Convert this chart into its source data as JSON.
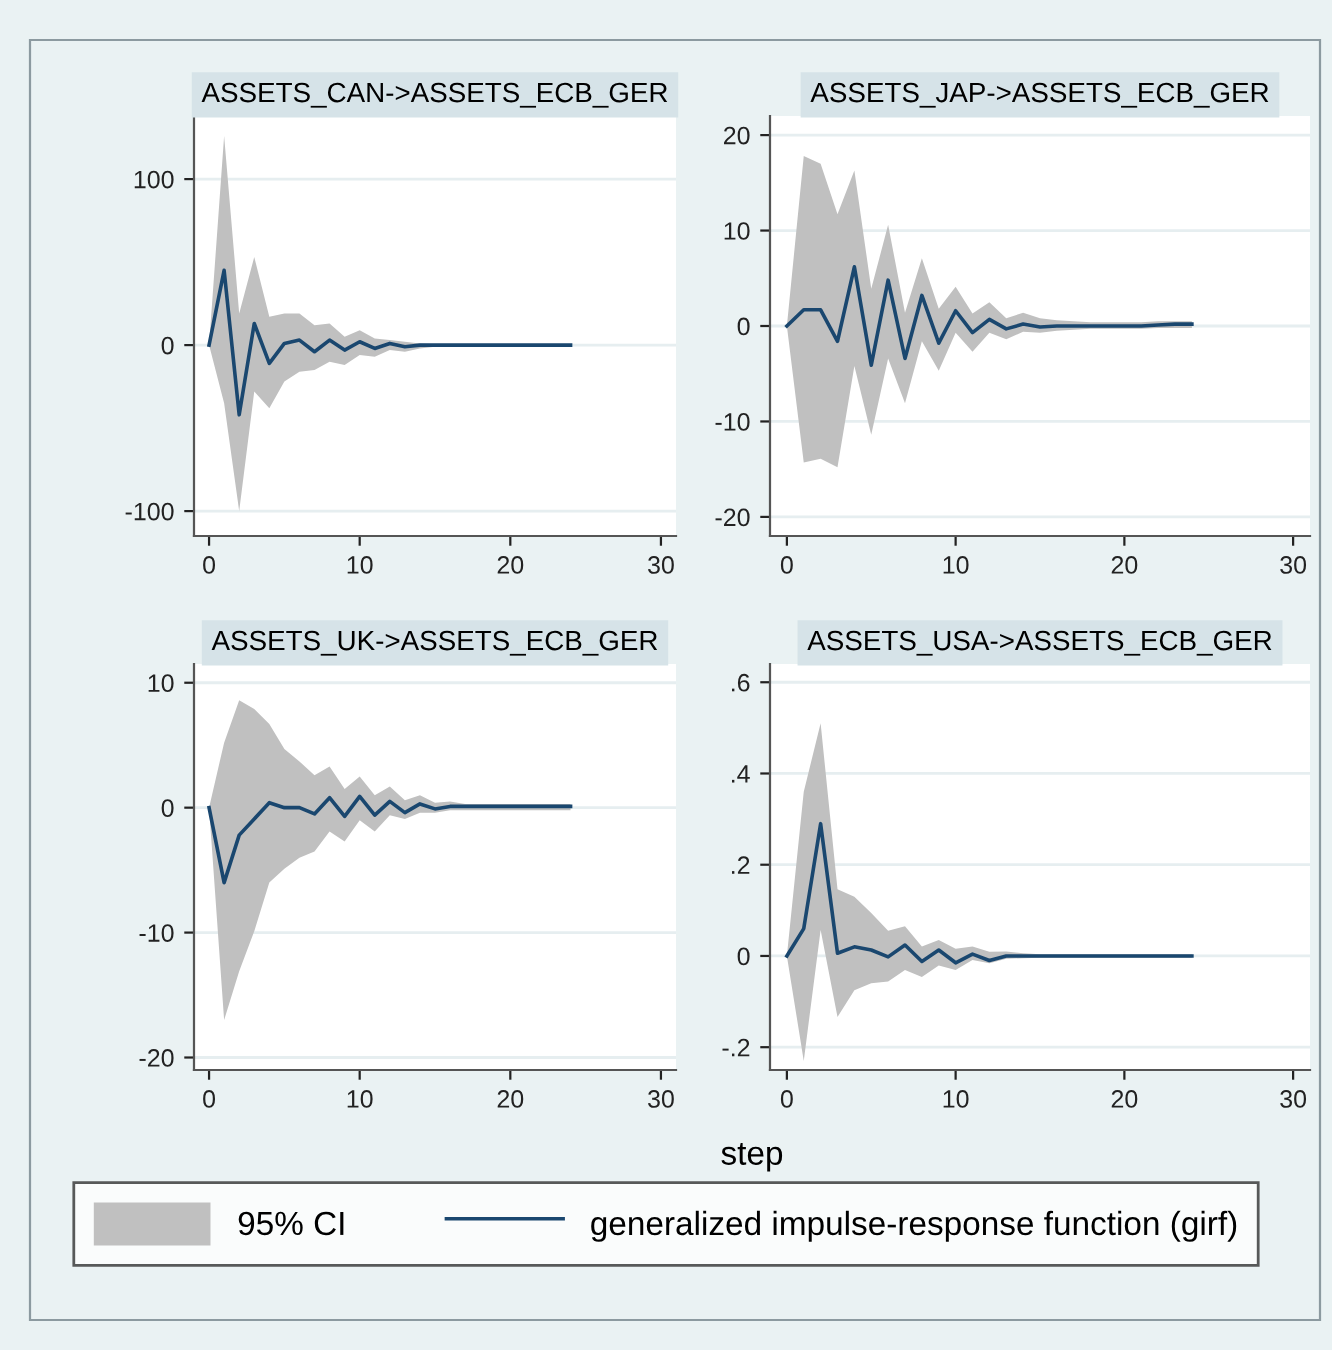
{
  "chart_data": [
    {
      "type": "line",
      "title": "ASSETS_CAN->ASSETS_ECB_GER",
      "x": [
        0,
        1,
        2,
        3,
        4,
        5,
        6,
        7,
        8,
        9,
        10,
        11,
        12,
        13,
        14,
        15,
        16,
        17,
        18,
        19,
        20,
        21,
        22,
        23,
        24
      ],
      "xlim": [
        -1,
        31
      ],
      "xticks": [
        0,
        10,
        20,
        30
      ],
      "ylim": [
        -115,
        138
      ],
      "yticks": [
        -100,
        0,
        100
      ],
      "grid": "y",
      "series": [
        {
          "color": "#1a476f",
          "values": [
            0,
            45,
            -42,
            13,
            -11,
            1,
            3,
            -4,
            3,
            -3,
            2,
            -2,
            1,
            -1,
            0,
            0,
            0,
            0,
            0,
            0,
            0,
            0,
            0,
            0,
            0
          ],
          "upper": [
            0,
            126,
            19,
            53,
            17,
            19,
            19,
            12,
            13,
            5,
            9,
            4,
            3,
            2,
            1,
            0.5,
            0.3,
            0.3,
            0.3,
            0.3,
            0.3,
            0.3,
            0.3,
            0.3,
            0.3
          ],
          "lower": [
            0,
            -35,
            -100,
            -28,
            -38,
            -22,
            -16,
            -15,
            -10,
            -12,
            -6,
            -7,
            -3,
            -4,
            -2,
            -1,
            -0.3,
            -0.3,
            -0.3,
            -0.3,
            -0.3,
            -0.3,
            -0.3,
            -0.3,
            -0.3
          ]
        }
      ]
    },
    {
      "type": "line",
      "title": "ASSETS_JAP->ASSETS_ECB_GER",
      "x": [
        0,
        1,
        2,
        3,
        4,
        5,
        6,
        7,
        8,
        9,
        10,
        11,
        12,
        13,
        14,
        15,
        16,
        17,
        18,
        19,
        20,
        21,
        22,
        23,
        24
      ],
      "xlim": [
        -1,
        31
      ],
      "xticks": [
        0,
        10,
        20,
        30
      ],
      "ylim": [
        -22,
        22
      ],
      "yticks": [
        -20,
        -10,
        0,
        10,
        20
      ],
      "grid": "y",
      "series": [
        {
          "color": "#1a476f",
          "values": [
            0,
            1.7,
            1.7,
            -1.6,
            6.2,
            -4.1,
            4.8,
            -3.4,
            3.2,
            -1.8,
            1.6,
            -0.7,
            0.7,
            -0.3,
            0.2,
            -0.1,
            0,
            0,
            0,
            0,
            0,
            0,
            0.1,
            0.2,
            0.2
          ],
          "upper": [
            0,
            17.8,
            17,
            11.7,
            16.3,
            3.9,
            10.6,
            1.4,
            7.1,
            1.8,
            4.1,
            1.3,
            2.5,
            0.8,
            1.4,
            0.8,
            0.6,
            0.5,
            0.4,
            0.4,
            0.4,
            0.4,
            0.5,
            0.5,
            0.5
          ],
          "lower": [
            0,
            -14.3,
            -13.9,
            -14.8,
            -4.2,
            -11.4,
            -3.4,
            -8.1,
            -1.6,
            -4.7,
            -0.7,
            -2.7,
            -0.7,
            -1.4,
            -0.6,
            -0.7,
            -0.5,
            -0.4,
            -0.3,
            -0.3,
            -0.3,
            -0.3,
            -0.2,
            -0.2,
            -0.2
          ]
        }
      ]
    },
    {
      "type": "line",
      "title": "ASSETS_UK->ASSETS_ECB_GER",
      "x": [
        0,
        1,
        2,
        3,
        4,
        5,
        6,
        7,
        8,
        9,
        10,
        11,
        12,
        13,
        14,
        15,
        16,
        17,
        18,
        19,
        20,
        21,
        22,
        23,
        24
      ],
      "xlim": [
        -1,
        31
      ],
      "xticks": [
        0,
        10,
        20,
        30
      ],
      "ylim": [
        -21,
        11.5
      ],
      "yticks": [
        -20,
        -10,
        0,
        10
      ],
      "grid": "y",
      "xlabel": "step",
      "series": [
        {
          "color": "#1a476f",
          "values": [
            0,
            -6,
            -2.2,
            -0.9,
            0.4,
            0,
            0,
            -0.5,
            0.8,
            -0.7,
            0.9,
            -0.6,
            0.5,
            -0.4,
            0.3,
            -0.1,
            0.1,
            0.1,
            0.1,
            0.1,
            0.1,
            0.1,
            0.1,
            0.1,
            0.1
          ],
          "upper": [
            0,
            5.2,
            8.6,
            7.9,
            6.7,
            4.7,
            3.7,
            2.6,
            3.3,
            1.5,
            2.5,
            1,
            1.7,
            0.6,
            1,
            0.4,
            0.5,
            0.3,
            0.3,
            0.3,
            0.3,
            0.3,
            0.3,
            0.3,
            0.3
          ],
          "lower": [
            0,
            -17,
            -13.1,
            -9.9,
            -6,
            -4.9,
            -4,
            -3.5,
            -1.9,
            -2.7,
            -1,
            -1.9,
            -0.6,
            -0.9,
            -0.4,
            -0.4,
            -0.2,
            -0.2,
            -0.2,
            -0.2,
            -0.2,
            -0.2,
            -0.2,
            -0.2,
            -0.2
          ]
        }
      ]
    },
    {
      "type": "line",
      "title": "ASSETS_USA->ASSETS_ECB_GER",
      "x": [
        0,
        1,
        2,
        3,
        4,
        5,
        6,
        7,
        8,
        9,
        10,
        11,
        12,
        13,
        14,
        15,
        16,
        17,
        18,
        19,
        20,
        21,
        22,
        23,
        24
      ],
      "xlim": [
        -1,
        31
      ],
      "xticks": [
        0,
        10,
        20,
        30
      ],
      "ylim": [
        -0.25,
        0.64
      ],
      "yticks": [
        {
          "value": -0.2,
          "label": "-.2"
        },
        {
          "value": 0,
          "label": "0"
        },
        {
          "value": 0.2,
          "label": ".2"
        },
        {
          "value": 0.4,
          "label": ".4"
        },
        {
          "value": 0.6,
          "label": ".6"
        }
      ],
      "grid": "y",
      "legend": "bottom",
      "annotations": [
        "95% CI"
      ],
      "series": [
        {
          "name": "generalized impulse-response function (girf)",
          "color": "#1a476f",
          "values": [
            0,
            0.06,
            0.29,
            0.006,
            0.02,
            0.013,
            -0.002,
            0.024,
            -0.012,
            0.013,
            -0.015,
            0.004,
            -0.01,
            0,
            0,
            0,
            0,
            0,
            0,
            0,
            0,
            0,
            0,
            0,
            0
          ],
          "upper": [
            0,
            0.36,
            0.51,
            0.146,
            0.13,
            0.094,
            0.055,
            0.065,
            0.021,
            0.035,
            0.016,
            0.021,
            0.009,
            0.01,
            0.006,
            0.004,
            0.004,
            0.004,
            0.004,
            0.004,
            0.004,
            0.004,
            0.004,
            0.004,
            0.004
          ],
          "lower": [
            0,
            -0.23,
            0.057,
            -0.134,
            -0.075,
            -0.06,
            -0.056,
            -0.031,
            -0.046,
            -0.021,
            -0.031,
            -0.009,
            -0.016,
            -0.006,
            -0.005,
            -0.004,
            -0.004,
            -0.004,
            -0.004,
            -0.004,
            -0.004,
            -0.004,
            -0.004,
            -0.004,
            -0.004
          ]
        }
      ]
    }
  ]
}
